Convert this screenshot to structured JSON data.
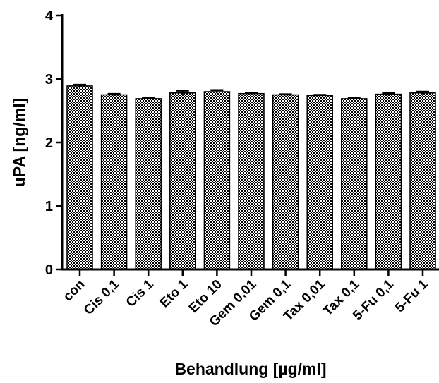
{
  "chart_data": {
    "type": "bar",
    "title": "",
    "xlabel": "Behandlung [µg/ml]",
    "ylabel": "uPA [ng/ml]",
    "ylim": [
      0,
      4
    ],
    "yticks": [
      "0",
      "1",
      "2",
      "3",
      "4"
    ],
    "grid": false,
    "bar_fill": "checkered",
    "categories": [
      "con",
      "Cis 0,1",
      "Cis 1",
      "Eto 1",
      "Eto 10",
      "Gem 0,01",
      "Gem 0,1",
      "Tax 0,01",
      "Tax 0,1",
      "5-Fu 0,1",
      "5-Fu 1"
    ],
    "values": [
      2.89,
      2.75,
      2.69,
      2.78,
      2.8,
      2.77,
      2.75,
      2.74,
      2.69,
      2.76,
      2.78
    ],
    "errors": [
      0.02,
      0.015,
      0.015,
      0.035,
      0.025,
      0.015,
      0.01,
      0.01,
      0.015,
      0.02,
      0.02
    ]
  }
}
